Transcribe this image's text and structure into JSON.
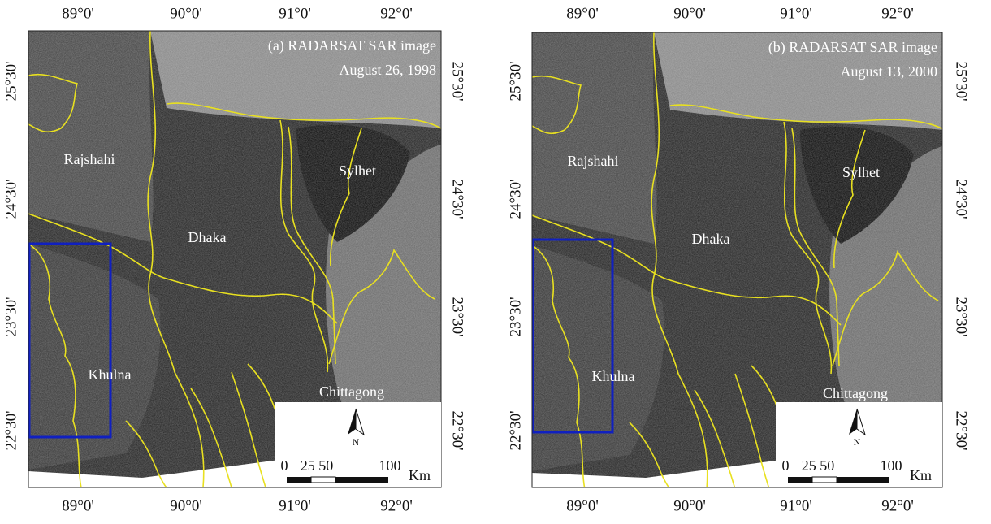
{
  "panels": [
    {
      "title": "(a) RADARSAT SAR image",
      "date": "August 26, 1998",
      "lon_labels": [
        "89°0'",
        "90°0'",
        "91°0'",
        "92°0'"
      ],
      "lat_labels": [
        "25°30'",
        "24°30'",
        "23°30'",
        "22°30'"
      ],
      "regions": [
        "Rajshahi",
        "Dhaka",
        "Sylhet",
        "Khulna",
        "Chittagong"
      ],
      "scale_labels": [
        "0",
        "25 50",
        "100"
      ],
      "scale_unit": "Km",
      "north": "N"
    },
    {
      "title": "(b) RADARSAT SAR image",
      "date": "August 13, 2000",
      "lon_labels": [
        "89°0'",
        "90°0'",
        "91°0'",
        "92°0'"
      ],
      "lat_labels": [
        "25°30'",
        "24°30'",
        "23°30'",
        "22°30'"
      ],
      "regions": [
        "Rajshahi",
        "Dhaka",
        "Sylhet",
        "Khulna",
        "Chittagong"
      ],
      "scale_labels": [
        "0",
        "25 50",
        "100"
      ],
      "scale_unit": "Km",
      "north": "N"
    }
  ]
}
